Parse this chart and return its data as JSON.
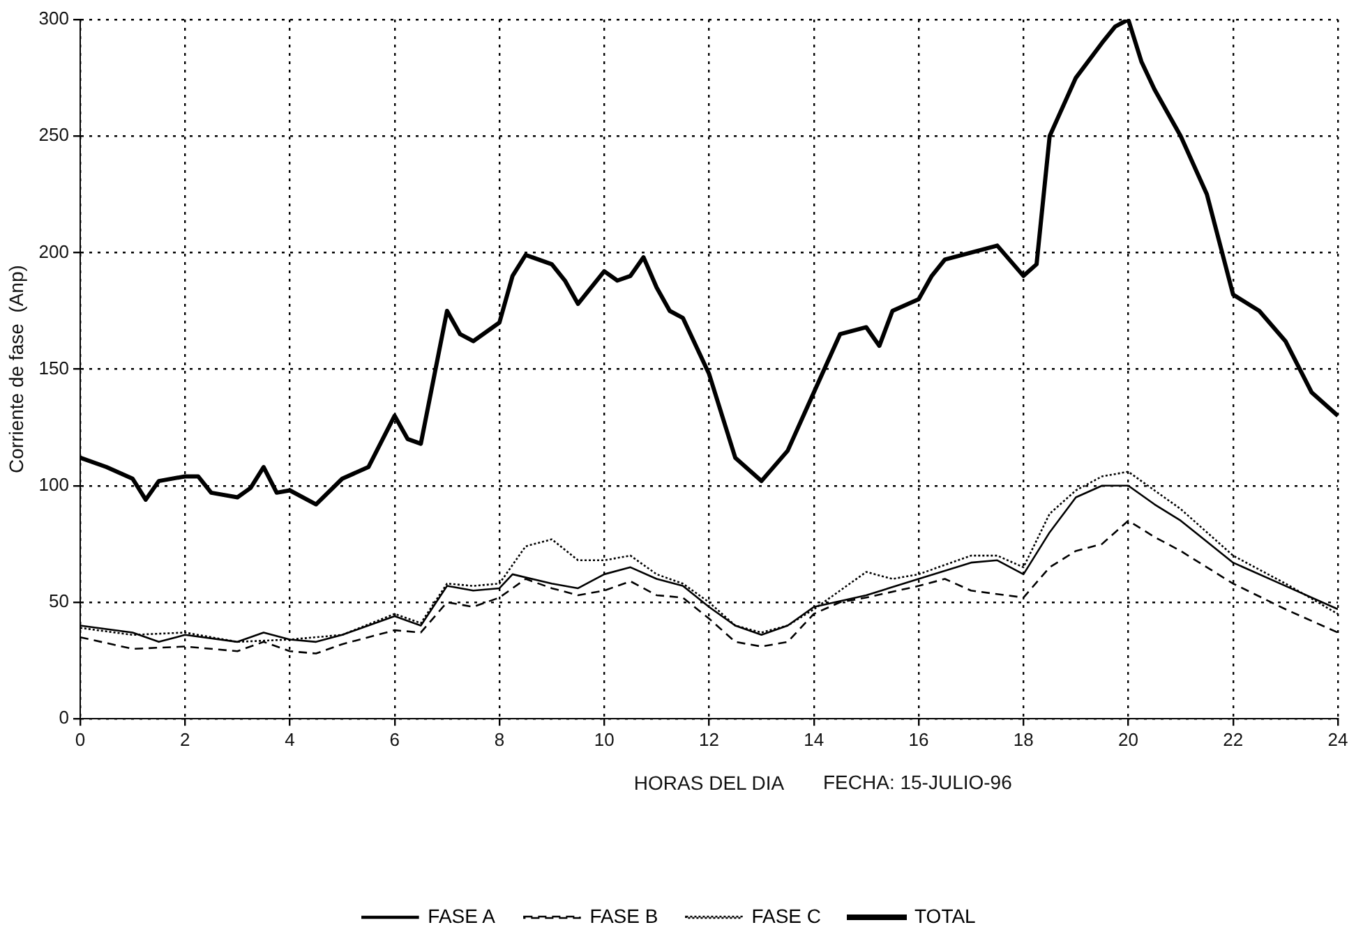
{
  "chart_data": {
    "type": "line",
    "xlabel": "HORAS DEL DIA",
    "ylabel": "Corriente de fase  (Anp)",
    "annotations": [
      "FECHA: 15-JULIO-96"
    ],
    "xlim": [
      0,
      24
    ],
    "xticks": [
      0,
      2,
      4,
      6,
      8,
      10,
      12,
      14,
      16,
      18,
      20,
      22,
      24
    ],
    "ylim": [
      0,
      300
    ],
    "yticks": [
      0,
      50,
      100,
      150,
      200,
      250,
      300
    ],
    "grid": true,
    "legend": "bottom",
    "marker": "none",
    "series": [
      {
        "name": "FASE A",
        "color": "#000000",
        "line_style": "solid",
        "x": [
          0,
          1,
          1.5,
          2,
          3,
          3.5,
          4,
          4.5,
          5,
          6,
          6.5,
          7,
          7.5,
          8,
          8.25,
          9,
          9.5,
          10,
          10.5,
          11,
          11.5,
          12,
          12.5,
          13,
          13.5,
          14,
          15,
          16,
          17,
          17.5,
          18,
          18.5,
          19,
          19.5,
          20,
          20.5,
          21,
          22,
          23,
          24
        ],
        "values": [
          40,
          37,
          33,
          36,
          33,
          37,
          34,
          33,
          36,
          44,
          40,
          57,
          55,
          56,
          62,
          58,
          56,
          62,
          65,
          60,
          57,
          48,
          40,
          36,
          40,
          48,
          53,
          60,
          67,
          68,
          62,
          80,
          95,
          100,
          100,
          92,
          85,
          67,
          57,
          47
        ]
      },
      {
        "name": "FASE B",
        "color": "#000000",
        "line_style": "dashed",
        "x": [
          0,
          1,
          2,
          3,
          3.5,
          4,
          4.5,
          5,
          6,
          6.5,
          7,
          7.5,
          8,
          8.5,
          9,
          9.5,
          10,
          10.5,
          11,
          11.5,
          12,
          12.5,
          13,
          13.5,
          14,
          14.5,
          15,
          16,
          16.5,
          17,
          18,
          18.5,
          19,
          19.5,
          20,
          20.5,
          21,
          22,
          23,
          24
        ],
        "values": [
          35,
          30,
          31,
          29,
          33,
          29,
          28,
          32,
          38,
          37,
          50,
          48,
          52,
          60,
          56,
          53,
          55,
          59,
          53,
          52,
          43,
          33,
          31,
          33,
          45,
          50,
          52,
          57,
          60,
          55,
          52,
          65,
          72,
          75,
          85,
          78,
          72,
          58,
          47,
          37
        ]
      },
      {
        "name": "FASE C",
        "color": "#000000",
        "line_style": "dotted",
        "x": [
          0,
          1,
          2,
          3,
          4,
          5,
          6,
          6.5,
          7,
          7.5,
          8,
          8.5,
          9,
          9.5,
          10,
          10.5,
          11,
          11.5,
          12,
          12.5,
          13,
          13.5,
          14,
          14.5,
          15,
          15.5,
          16,
          17,
          17.5,
          18,
          18.5,
          19,
          19.5,
          20,
          20.5,
          21,
          21.5,
          22,
          23,
          24
        ],
        "values": [
          39,
          36,
          37,
          33,
          34,
          36,
          45,
          41,
          58,
          57,
          58,
          74,
          77,
          68,
          68,
          70,
          62,
          58,
          50,
          40,
          37,
          40,
          47,
          55,
          63,
          60,
          62,
          70,
          70,
          65,
          88,
          98,
          104,
          106,
          98,
          90,
          80,
          70,
          58,
          45
        ]
      },
      {
        "name": "TOTAL",
        "color": "#000000",
        "line_style": "solid",
        "x": [
          0,
          0.5,
          1,
          1.25,
          1.5,
          2,
          2.25,
          2.5,
          3,
          3.25,
          3.5,
          3.75,
          4,
          4.5,
          5,
          5.5,
          6,
          6.25,
          6.5,
          7,
          7.25,
          7.5,
          8,
          8.25,
          8.5,
          9,
          9.25,
          9.5,
          10,
          10.25,
          10.5,
          10.75,
          11,
          11.25,
          11.5,
          12,
          12.5,
          13,
          13.5,
          14,
          14.5,
          15,
          15.25,
          15.5,
          16,
          16.25,
          16.5,
          17,
          17.5,
          18,
          18.25,
          18.5,
          19,
          19.5,
          19.75,
          20,
          20.25,
          20.5,
          21,
          21.5,
          22,
          22.5,
          23,
          23.5,
          24
        ],
        "values": [
          112,
          108,
          103,
          94,
          102,
          104,
          104,
          97,
          95,
          99,
          108,
          97,
          98,
          92,
          103,
          108,
          130,
          120,
          118,
          175,
          165,
          162,
          170,
          190,
          199,
          195,
          188,
          178,
          192,
          188,
          190,
          198,
          185,
          175,
          172,
          148,
          112,
          102,
          115,
          140,
          165,
          168,
          160,
          175,
          180,
          190,
          197,
          200,
          203,
          190,
          195,
          250,
          275,
          290,
          297,
          300,
          282,
          270,
          250,
          225,
          182,
          175,
          162,
          140,
          130
        ]
      }
    ]
  }
}
